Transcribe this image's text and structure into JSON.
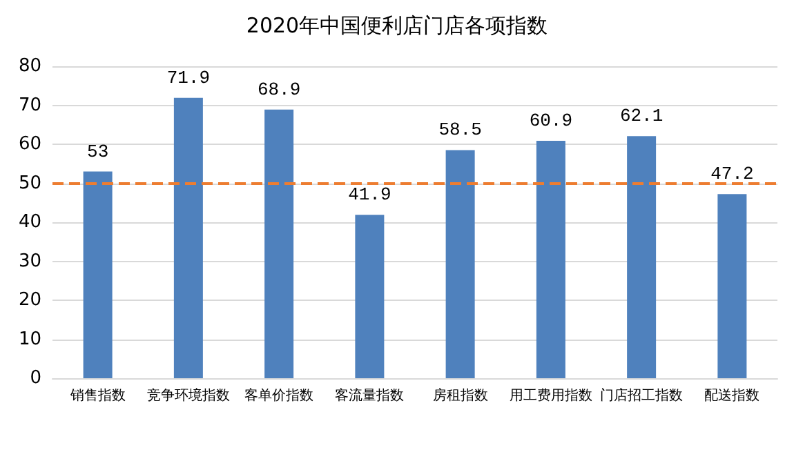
{
  "chart_data": {
    "type": "bar",
    "title": "2020年中国便利店门店各项指数",
    "categories": [
      "销售指数",
      "竞争环境指数",
      "客单价指数",
      "客流量指数",
      "房租指数",
      "用工费用指数",
      "门店招工指数",
      "配送指数"
    ],
    "values": [
      53,
      71.9,
      68.9,
      41.9,
      58.5,
      60.9,
      62.1,
      47.2
    ],
    "color": "#4f81bd",
    "data_labels": true,
    "ylim": [
      0,
      80
    ],
    "yticks": [
      0,
      10,
      20,
      30,
      40,
      50,
      60,
      70,
      80
    ],
    "grid": "y",
    "ref_lines": [
      {
        "axis": "y",
        "value": 50,
        "color": "#ed7d31",
        "line_style": "dashed"
      }
    ]
  }
}
